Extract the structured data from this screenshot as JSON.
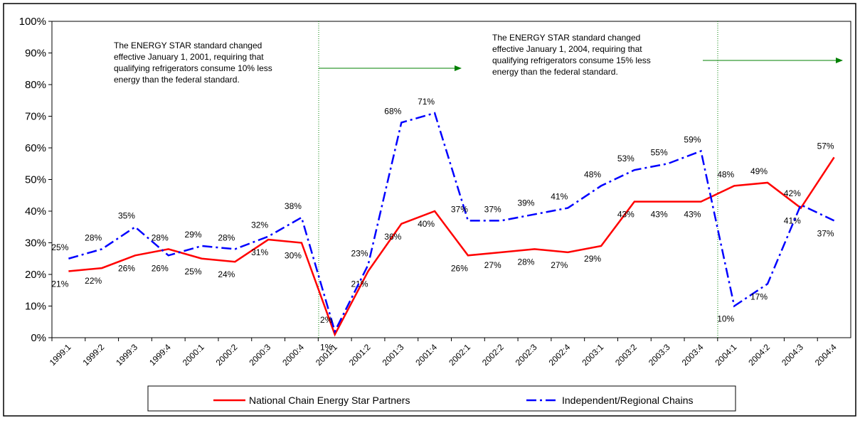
{
  "chart_data": {
    "type": "line",
    "categories": [
      "1999:1",
      "1999:2",
      "1999:3",
      "1999:4",
      "2000:1",
      "2000:2",
      "2000:3",
      "2000:4",
      "2001:1",
      "2001:2",
      "2001:3",
      "2001:4",
      "2002:1",
      "2002:2",
      "2002:3",
      "2002:4",
      "2003:1",
      "2003:2",
      "2003:3",
      "2003:4",
      "2004:1",
      "2004:2",
      "2004:3",
      "2004:4"
    ],
    "series": [
      {
        "name": "National Chain Energy Star Partners",
        "color": "#ff0000",
        "values": [
          21,
          22,
          26,
          28,
          25,
          24,
          31,
          30,
          1,
          21,
          36,
          40,
          26,
          27,
          28,
          27,
          29,
          43,
          43,
          43,
          48,
          49,
          41,
          57
        ],
        "value_labels": [
          "21%",
          "22%",
          "26%",
          "28%",
          "25%",
          "24%",
          "31%",
          "30%",
          "1%",
          "21%",
          "36%",
          "40%",
          "26%",
          "27%",
          "28%",
          "27%",
          "29%",
          "43%",
          "43%",
          "43%",
          "48%",
          "49%",
          "41%",
          "57%"
        ]
      },
      {
        "name": "Independent/Regional Chains",
        "color": "#0000ff",
        "values": [
          25,
          28,
          35,
          26,
          29,
          28,
          32,
          38,
          2,
          23,
          68,
          71,
          37,
          37,
          39,
          41,
          48,
          53,
          55,
          59,
          10,
          17,
          42,
          37
        ],
        "value_labels": [
          "25%",
          "28%",
          "35%",
          "26%",
          "29%",
          "28%",
          "32%",
          "38%",
          "2%",
          "23%",
          "68%",
          "71%",
          "37%",
          "37%",
          "39%",
          "41%",
          "48%",
          "53%",
          "55%",
          "59%",
          "10%",
          "17%",
          "42%",
          "37%"
        ]
      }
    ],
    "ylim": [
      0,
      100
    ],
    "yticks": [
      {
        "value": 0,
        "label": "0%"
      },
      {
        "value": 10,
        "label": "10%"
      },
      {
        "value": 20,
        "label": "20%"
      },
      {
        "value": 30,
        "label": "30%"
      },
      {
        "value": 40,
        "label": "40%"
      },
      {
        "value": 50,
        "label": "50%"
      },
      {
        "value": 60,
        "label": "60%"
      },
      {
        "value": 70,
        "label": "70%"
      },
      {
        "value": 80,
        "label": "80%"
      },
      {
        "value": 90,
        "label": "90%"
      },
      {
        "value": 100,
        "label": "100%"
      }
    ],
    "annotations": [
      {
        "lines": [
          "The ENERGY STAR standard changed",
          "effective January 1, 2001, requiring that",
          "qualifying refrigerators consume 10% less",
          "energy than the federal standard."
        ]
      },
      {
        "lines": [
          "The ENERGY STAR standard changed",
          "effective January 1, 2004, requiring that",
          "qualifying refrigerators consume 15% less",
          "energy than the federal standard."
        ]
      }
    ],
    "legend": "bottom"
  }
}
